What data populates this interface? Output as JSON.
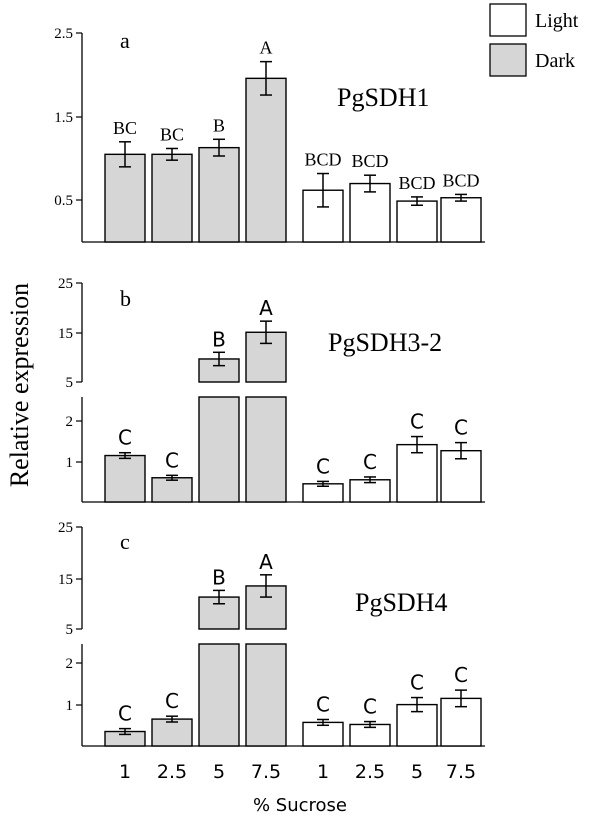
{
  "figure": {
    "ylabel": "Relative expression",
    "xlabel": "% Sucrose",
    "x_tick_labels": [
      "1",
      "2.5",
      "5",
      "7.5",
      "1",
      "2.5",
      "5",
      "7.5"
    ],
    "legend": [
      {
        "name": "Light",
        "color": "#ffffff"
      },
      {
        "name": "Dark",
        "color": "#d6d6d6"
      }
    ]
  },
  "chart_data": [
    {
      "type": "bar",
      "panel": "a",
      "gene": "PgSDH1",
      "y_ticks": [
        "2.5",
        "1.5",
        "0.5"
      ],
      "ylim": [
        0,
        2.5
      ],
      "categories": [
        "1",
        "2.5",
        "5",
        "7.5",
        "1",
        "2.5",
        "5",
        "7.5"
      ],
      "series": [
        {
          "name": "Dark",
          "values": [
            1.05,
            1.05,
            1.13,
            1.96,
            null,
            null,
            null,
            null
          ],
          "errors": [
            0.15,
            0.07,
            0.1,
            0.2,
            null,
            null,
            null,
            null
          ],
          "letters": [
            "BC",
            "BC",
            "B",
            "A",
            null,
            null,
            null,
            null
          ]
        },
        {
          "name": "Light",
          "values": [
            null,
            null,
            null,
            null,
            0.62,
            0.7,
            0.49,
            0.53
          ],
          "errors": [
            null,
            null,
            null,
            null,
            0.2,
            0.1,
            0.05,
            0.04
          ],
          "letters": [
            null,
            null,
            null,
            null,
            "BCD",
            "BCD",
            "BCD",
            "BCD"
          ]
        }
      ]
    },
    {
      "type": "bar",
      "panel": "b",
      "gene": "PgSDH3-2",
      "broken_axis": true,
      "y_ticks_upper": [
        "25",
        "15",
        "5"
      ],
      "y_ticks_lower": [
        "2",
        "1"
      ],
      "ylim_upper": [
        2.6,
        25
      ],
      "ylim_lower": [
        0,
        2.6
      ],
      "categories": [
        "1",
        "2.5",
        "5",
        "7.5",
        "1",
        "2.5",
        "5",
        "7.5"
      ],
      "series": [
        {
          "name": "Dark",
          "values": [
            1.15,
            0.6,
            8.0,
            14.0,
            null,
            null,
            null,
            null
          ],
          "errors": [
            0.07,
            0.06,
            1.5,
            2.5,
            null,
            null,
            null,
            null
          ],
          "letters": [
            "C",
            "C",
            "B",
            "A",
            null,
            null,
            null,
            null
          ]
        },
        {
          "name": "Light",
          "values": [
            null,
            null,
            null,
            null,
            0.45,
            0.55,
            1.42,
            1.27
          ],
          "errors": [
            null,
            null,
            null,
            null,
            0.06,
            0.07,
            0.2,
            0.2
          ],
          "letters": [
            null,
            null,
            null,
            null,
            "C",
            "C",
            "C",
            "C"
          ]
        }
      ]
    },
    {
      "type": "bar",
      "panel": "c",
      "gene": "PgSDH4",
      "broken_axis": true,
      "y_ticks_upper": [
        "25",
        "15",
        "5"
      ],
      "y_ticks_lower": [
        "2",
        "1"
      ],
      "ylim_upper": [
        2.6,
        25
      ],
      "ylim_lower": [
        0,
        2.6
      ],
      "categories": [
        "1",
        "2.5",
        "5",
        "7.5",
        "1",
        "2.5",
        "5",
        "7.5"
      ],
      "series": [
        {
          "name": "Dark",
          "values": [
            0.35,
            0.65,
            10.0,
            12.5,
            null,
            null,
            null,
            null
          ],
          "errors": [
            0.07,
            0.07,
            1.5,
            2.5,
            null,
            null,
            null,
            null
          ],
          "letters": [
            "C",
            "C",
            "B",
            "A",
            null,
            null,
            null,
            null
          ]
        },
        {
          "name": "Light",
          "values": [
            null,
            null,
            null,
            null,
            0.57,
            0.52,
            1.0,
            1.15
          ],
          "errors": [
            null,
            null,
            null,
            null,
            0.07,
            0.07,
            0.17,
            0.2
          ],
          "letters": [
            null,
            null,
            null,
            null,
            "C",
            "C",
            "C",
            "C"
          ]
        }
      ]
    }
  ]
}
